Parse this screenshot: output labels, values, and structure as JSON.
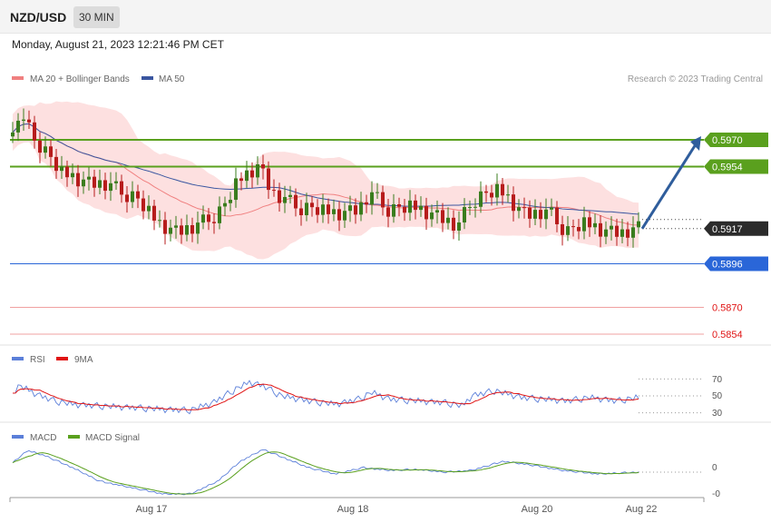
{
  "header": {
    "pair": "NZD/USD",
    "timeframe": "30 MIN",
    "date": "Monday, August 21, 2023 12:21:46 PM CET"
  },
  "legend": {
    "bb": "MA 20 + Bollinger Bands",
    "ma50": "MA 50",
    "copyright": "Research © 2023 Trading Central"
  },
  "colors": {
    "up": "#3a7d1e",
    "down": "#b71c1c",
    "bb": "#fde0e0",
    "ma20": "#f08080",
    "ma50": "#3a56a0",
    "resistance": "#5aa01e",
    "support": "#2a66d8",
    "support2": "#e05050",
    "arrow": "#2f5d9c",
    "rsi": "#5b7fd9",
    "rsi_ma": "#e01414",
    "macd": "#5b7fd9",
    "macd_signal": "#5aa01e"
  },
  "chart_data": [
    {
      "type": "candlestick",
      "title": "NZD/USD",
      "ylim": [
        0.5846,
        0.5996
      ],
      "levels": [
        {
          "value": 0.597,
          "label": "0.5970",
          "kind": "resistance"
        },
        {
          "value": 0.5954,
          "label": "0.5954",
          "kind": "resistance"
        },
        {
          "value": 0.5917,
          "label": "0.5917",
          "kind": "current"
        },
        {
          "value": 0.5896,
          "label": "0.5896",
          "kind": "support"
        },
        {
          "value": 0.587,
          "label": "0.5870",
          "kind": "support2"
        },
        {
          "value": 0.5854,
          "label": "0.5854",
          "kind": "support2"
        }
      ],
      "x_ticks": [
        "Aug 17",
        "Aug 18",
        "Aug 20",
        "Aug 22"
      ],
      "projection": {
        "from": 0.5917,
        "to": 0.597
      }
    },
    {
      "type": "line",
      "title": "RSI",
      "series": [
        {
          "name": "RSI"
        },
        {
          "name": "9MA"
        }
      ],
      "y_ticks": [
        "70",
        "50",
        "30"
      ],
      "ylim": [
        20,
        80
      ]
    },
    {
      "type": "line",
      "title": "MACD",
      "series": [
        {
          "name": "MACD"
        },
        {
          "name": "MACD Signal"
        }
      ],
      "y_ticks": [
        "0",
        "-0"
      ]
    }
  ]
}
